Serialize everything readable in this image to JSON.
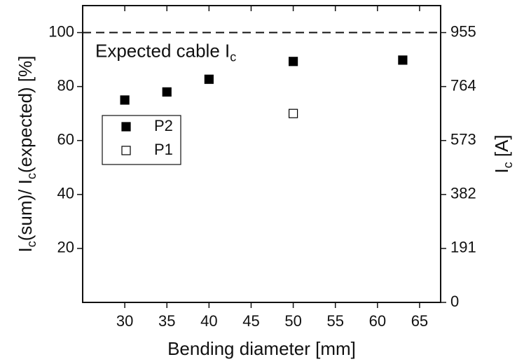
{
  "chart_data": {
    "type": "scatter",
    "x_label": "Bending diameter [mm]",
    "y_label": [
      "I",
      "c",
      "(sum)/ I",
      "c",
      "(expected) [%]"
    ],
    "y2_label": [
      "I",
      "c",
      " [A]"
    ],
    "annotation": [
      "Expected cable I",
      "c"
    ],
    "reference_line": {
      "value": 100,
      "style": "dashed"
    },
    "series": [
      {
        "name": "P2",
        "color": "#000000",
        "filled": true,
        "marker": "square",
        "x": [
          30,
          35,
          40,
          50,
          63
        ],
        "values": [
          75,
          78,
          82.7,
          89.3,
          89.8
        ]
      },
      {
        "name": "P1",
        "color": "#000000",
        "filled": false,
        "marker": "square",
        "x": [
          50
        ],
        "values": [
          70
        ]
      }
    ],
    "xlim": [
      25,
      67.5
    ],
    "xticks": [
      30,
      35,
      40,
      45,
      50,
      55,
      60,
      65
    ],
    "ylim": [
      0,
      110
    ],
    "yticks": [
      20,
      40,
      60,
      80,
      100
    ],
    "y2lim": [
      0,
      1050.5
    ],
    "y2ticks": [
      0,
      191,
      382,
      573,
      764,
      955
    ],
    "grid": false,
    "legend_loc": "center left"
  }
}
